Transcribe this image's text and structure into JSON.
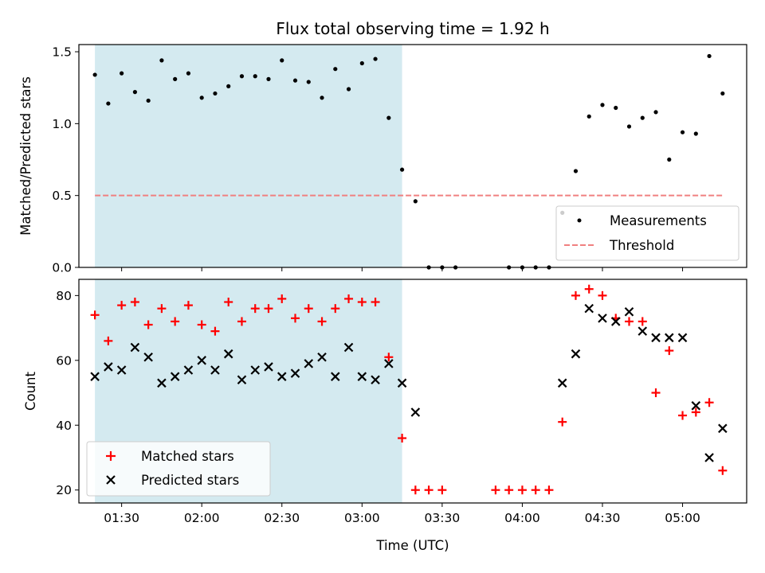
{
  "chart_data": {
    "title": "Flux total observing time = 1.92 h",
    "xlabel": "Time (UTC)",
    "x_tick_labels": [
      "01:30",
      "02:00",
      "02:30",
      "03:00",
      "03:30",
      "04:00",
      "04:30",
      "05:00"
    ],
    "x_ticks_minutes": [
      90,
      120,
      150,
      180,
      210,
      240,
      270,
      300
    ],
    "xlim": [
      74,
      324
    ],
    "shaded_interval": [
      "01:20",
      "03:15"
    ],
    "shaded_interval_minutes": [
      80,
      195
    ],
    "colors": {
      "shade": "#d4eaf0",
      "measurements": "#000000",
      "threshold": "#f08080",
      "matched": "#ff0000",
      "predicted": "#000000"
    },
    "panels": [
      {
        "type": "scatter",
        "ylabel": "Matched/Predicted stars",
        "ylim": [
          0,
          1.55
        ],
        "y_tick_labels": [
          "0.0",
          "0.5",
          "1.0",
          "1.5"
        ],
        "y_ticks": [
          0,
          0.5,
          1.0,
          1.5
        ],
        "legend_position": "lower-right",
        "series": [
          {
            "name": "Measurements",
            "marker": "dot",
            "x": [
              80,
              85,
              90,
              95,
              100,
              105,
              110,
              115,
              120,
              125,
              130,
              135,
              140,
              145,
              150,
              155,
              160,
              165,
              170,
              175,
              180,
              185,
              190,
              195,
              200,
              205,
              210,
              215,
              235,
              240,
              245,
              250,
              255,
              260,
              265,
              270,
              275,
              280,
              285,
              290,
              295,
              300,
              305,
              310,
              315
            ],
            "y": [
              1.34,
              1.14,
              1.35,
              1.22,
              1.16,
              1.44,
              1.31,
              1.35,
              1.18,
              1.21,
              1.26,
              1.33,
              1.33,
              1.31,
              1.44,
              1.3,
              1.29,
              1.18,
              1.38,
              1.24,
              1.42,
              1.45,
              1.04,
              0.68,
              0.46,
              0.0,
              0.0,
              0.0,
              0.0,
              0.0,
              0.0,
              0.0,
              0.38,
              0.67,
              1.05,
              1.13,
              1.11,
              0.98,
              1.04,
              1.08,
              0.75,
              0.94,
              0.93,
              1.47,
              1.21
            ]
          },
          {
            "name": "Threshold",
            "style": "dashed-line",
            "x": [
              80,
              315
            ],
            "y": [
              0.5,
              0.5
            ]
          }
        ]
      },
      {
        "type": "scatter",
        "ylabel": "Count",
        "ylim": [
          16,
          85
        ],
        "y_tick_labels": [
          "20",
          "40",
          "60",
          "80"
        ],
        "y_ticks": [
          20,
          40,
          60,
          80
        ],
        "legend_position": "lower-left",
        "series": [
          {
            "name": "Matched stars",
            "marker": "plus",
            "x": [
              80,
              85,
              90,
              95,
              100,
              105,
              110,
              115,
              120,
              125,
              130,
              135,
              140,
              145,
              150,
              155,
              160,
              165,
              170,
              175,
              180,
              185,
              190,
              195,
              200,
              205,
              210,
              230,
              235,
              240,
              245,
              250,
              255,
              260,
              265,
              270,
              275,
              280,
              285,
              290,
              295,
              300,
              305,
              310,
              315
            ],
            "y": [
              74,
              66,
              77,
              78,
              71,
              76,
              72,
              77,
              71,
              69,
              78,
              72,
              76,
              76,
              79,
              73,
              76,
              72,
              76,
              79,
              78,
              78,
              61,
              36,
              20,
              20,
              20,
              20,
              20,
              20,
              20,
              20,
              41,
              80,
              82,
              80,
              73,
              72,
              72,
              50,
              63,
              43,
              44,
              47,
              26
            ]
          },
          {
            "name": "Predicted stars",
            "marker": "x",
            "x": [
              80,
              85,
              90,
              95,
              100,
              105,
              110,
              115,
              120,
              125,
              130,
              135,
              140,
              145,
              150,
              155,
              160,
              165,
              170,
              175,
              180,
              185,
              190,
              195,
              200,
              255,
              260,
              265,
              270,
              275,
              280,
              285,
              290,
              295,
              300,
              305,
              310,
              315
            ],
            "y": [
              55,
              58,
              57,
              64,
              61,
              53,
              55,
              57,
              60,
              57,
              62,
              54,
              57,
              58,
              55,
              56,
              59,
              61,
              55,
              64,
              55,
              54,
              59,
              53,
              44,
              53,
              62,
              76,
              73,
              72,
              75,
              69,
              67,
              67,
              67,
              46,
              30,
              39
            ]
          }
        ]
      }
    ]
  }
}
